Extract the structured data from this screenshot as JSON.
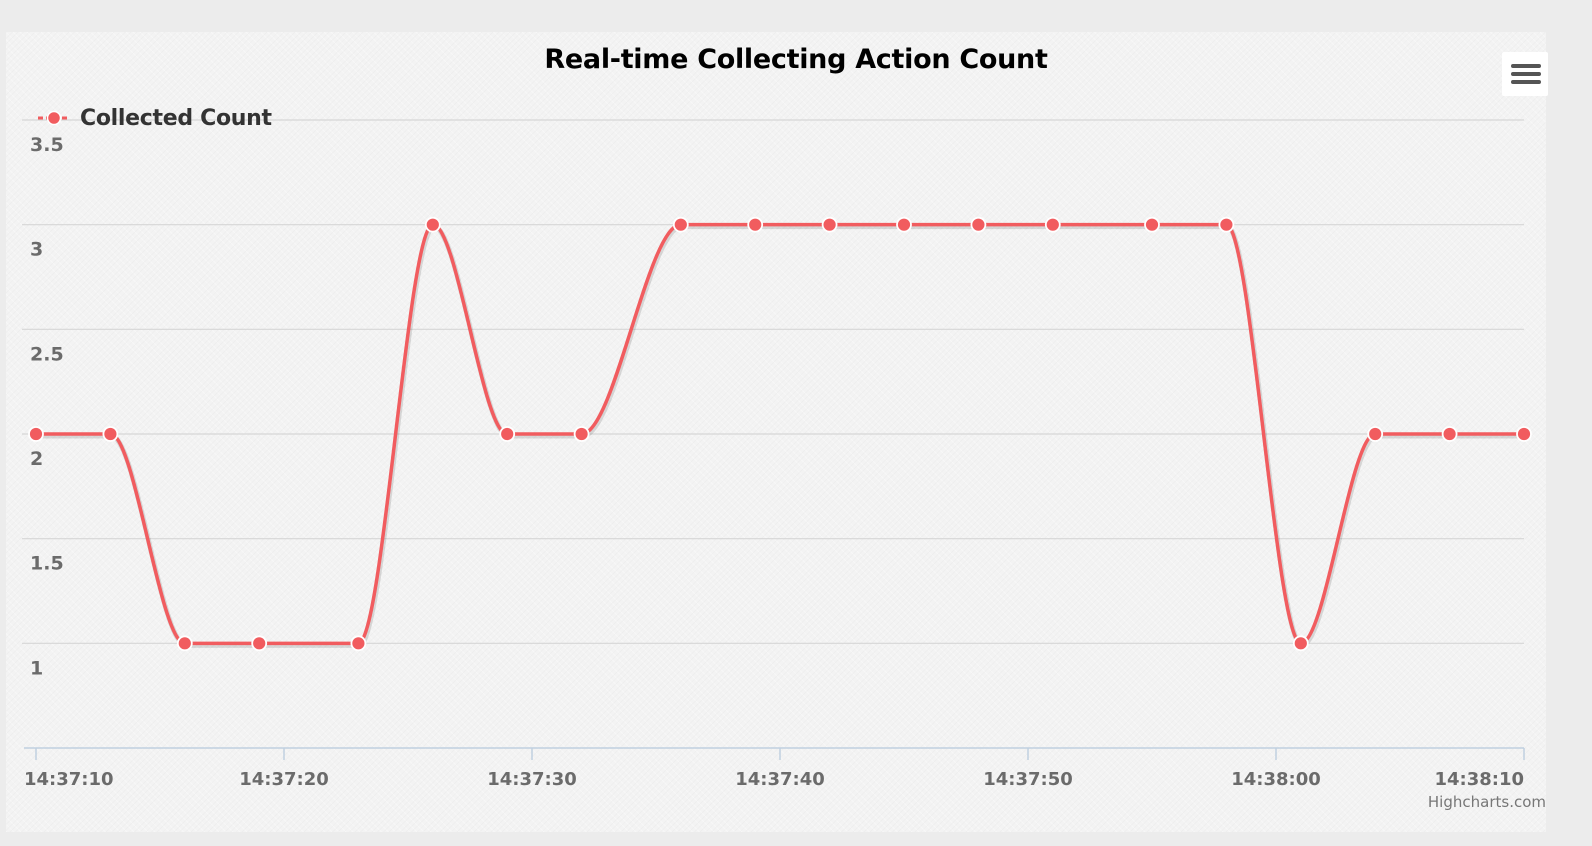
{
  "chart_data": {
    "type": "line",
    "title": "Real-time Collecting Action Count",
    "xlabel": "",
    "ylabel": "",
    "ylim": [
      0.5,
      3.5
    ],
    "y_ticks": [
      "1",
      "1.5",
      "2",
      "2.5",
      "3",
      "3.5"
    ],
    "x_ticks": [
      "14:37:10",
      "14:37:20",
      "14:37:30",
      "14:37:40",
      "14:37:50",
      "14:38:00",
      "14:38:10"
    ],
    "x_range": [
      "14:37:10",
      "14:38:10"
    ],
    "grid": true,
    "legend": "top-left",
    "series": [
      {
        "name": "Collected Count",
        "color": "#f15c5f",
        "x": [
          "14:37:10",
          "14:37:13",
          "14:37:16",
          "14:37:19",
          "14:37:23",
          "14:37:26",
          "14:37:29",
          "14:37:32",
          "14:37:36",
          "14:37:39",
          "14:37:42",
          "14:37:45",
          "14:37:48",
          "14:37:51",
          "14:37:55",
          "14:37:58",
          "14:38:01",
          "14:38:04",
          "14:38:07",
          "14:38:10"
        ],
        "values": [
          2,
          2,
          1,
          1,
          1,
          3,
          2,
          2,
          3,
          3,
          3,
          3,
          3,
          3,
          3,
          3,
          1,
          2,
          2,
          2
        ]
      }
    ]
  },
  "menu": {
    "icon": "hamburger-menu-icon"
  },
  "credits": {
    "text": "Highcharts.com"
  }
}
